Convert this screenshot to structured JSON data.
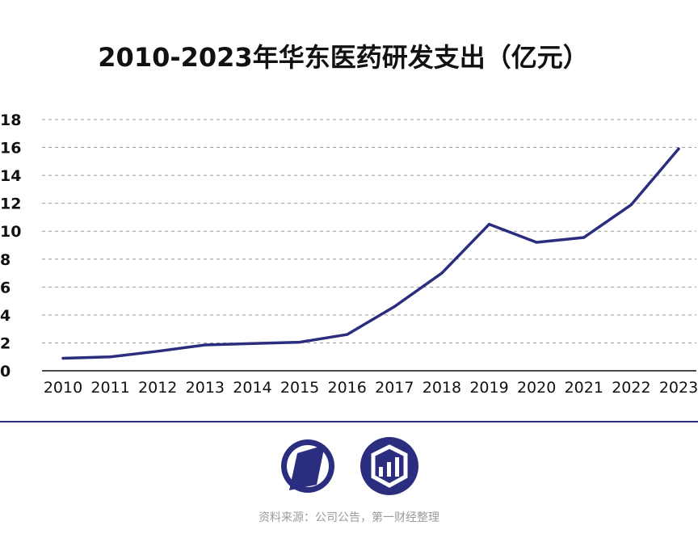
{
  "chart_data": {
    "type": "line",
    "title": "2010-2023年华东医药研发支出（亿元）",
    "xlabel": "",
    "ylabel": "",
    "categories": [
      "2010",
      "2011",
      "2012",
      "2013",
      "2014",
      "2015",
      "2016",
      "2017",
      "2018",
      "2019",
      "2020",
      "2021",
      "2022",
      "2023"
    ],
    "series": [
      {
        "name": "研发支出（亿元）",
        "color": "#2b2d7f",
        "values": [
          0.9,
          1.0,
          1.4,
          1.85,
          1.95,
          2.05,
          2.6,
          4.6,
          7.0,
          10.5,
          9.2,
          9.55,
          11.9,
          15.9
        ]
      }
    ],
    "ylim": [
      0,
      18
    ],
    "yticks": [
      "0",
      "2",
      "4",
      "6",
      "8",
      "10",
      "12",
      "14",
      "16",
      "18"
    ],
    "grid": true,
    "legend": "none"
  },
  "footer": {
    "source": "资料来源：公司公告，第一财经整理"
  },
  "colors": {
    "line": "#2b2d7f",
    "divider": "#2b2d7f",
    "logo": "#2b2d7f",
    "axis": "#111111"
  },
  "icons": {
    "logo_left": "yicai-logo-icon",
    "logo_right": "data-bars-logo-icon"
  }
}
